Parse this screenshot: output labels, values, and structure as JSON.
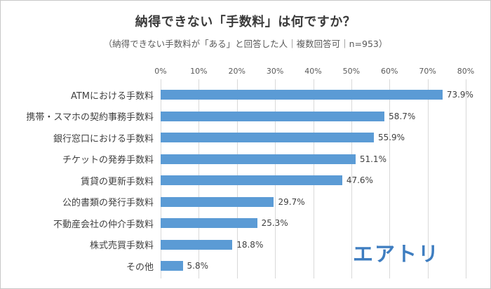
{
  "header": {
    "title": "納得できない「手数料」は何ですか？",
    "subtitle": "（納得できない手数料が「ある」と回答した人｜複数回答可｜n=953）"
  },
  "logo": {
    "text": "エアトリ",
    "color": "#3e7dc0"
  },
  "chart_data": {
    "type": "bar",
    "orientation": "horizontal",
    "title": "納得できない「手数料」は何ですか？",
    "subtitle": "（納得できない手数料が「ある」と回答した人｜複数回答可｜n=953）",
    "categories": [
      "ATMにおける手数料",
      "携帯・スマホの契約事務手数料",
      "銀行窓口における手数料",
      "チケットの発券手数料",
      "賃貸の更新手数料",
      "公的書類の発行手数料",
      "不動産会社の仲介手数料",
      "株式売買手数料",
      "その他"
    ],
    "values": [
      73.9,
      58.7,
      55.9,
      51.1,
      47.6,
      29.7,
      25.3,
      18.8,
      5.8
    ],
    "value_labels": [
      "73.9%",
      "58.7%",
      "55.9%",
      "51.1%",
      "47.6%",
      "29.7%",
      "25.3%",
      "18.8%",
      "5.8%"
    ],
    "xlabel": "",
    "ylabel": "",
    "xlim": [
      0,
      80
    ],
    "ticks": [
      "0%",
      "10%",
      "20%",
      "30%",
      "40%",
      "50%",
      "60%",
      "70%",
      "80%"
    ],
    "tick_values": [
      0,
      10,
      20,
      30,
      40,
      50,
      60,
      70,
      80
    ],
    "bar_color": "#5b9bd5",
    "grid": true,
    "gridline_color": "#d9d9d9",
    "axis_position": "top",
    "legend": "none"
  }
}
